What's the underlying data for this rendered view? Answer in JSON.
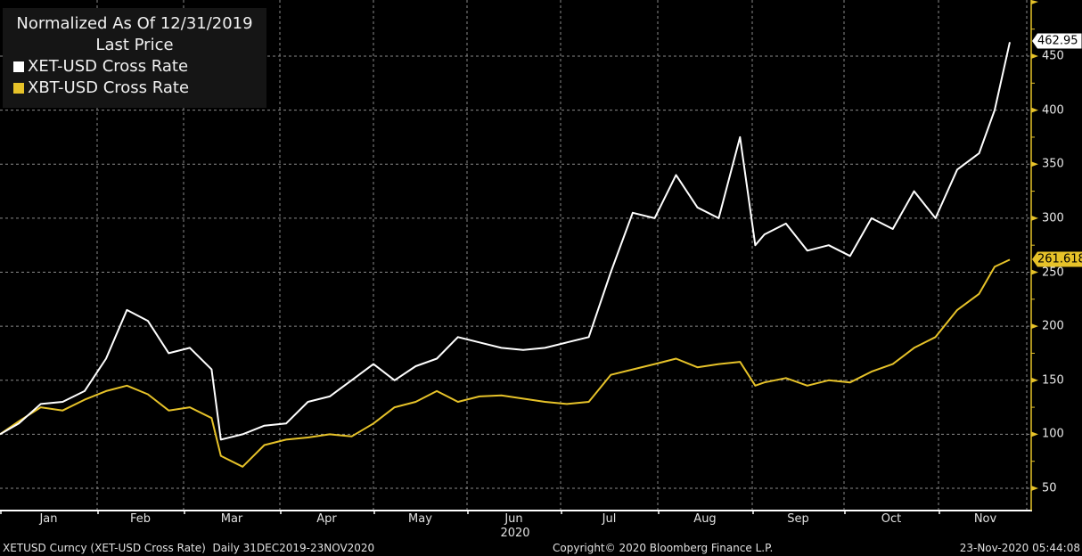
{
  "legend": {
    "title_line1": "Normalized As Of 12/31/2019",
    "title_line2": "Last Price",
    "items": [
      {
        "label": "XET-USD Cross Rate",
        "color": "#ffffff"
      },
      {
        "label": "XBT-USD Cross Rate",
        "color": "#e6c229"
      }
    ]
  },
  "footer": {
    "left": "XETUSD Curncy (XET-USD Cross Rate)  Daily 31DEC2019-23NOV2020",
    "center": "Copyright© 2020 Bloomberg Finance L.P.",
    "right": "23-Nov-2020 05:44:08"
  },
  "price_tags": {
    "xet": {
      "value": "462.95",
      "bg": "#ffffff",
      "fg": "#000000"
    },
    "xbt": {
      "value": "261.618",
      "bg": "#e6c229",
      "fg": "#000000"
    }
  },
  "colors": {
    "background": "#000000",
    "axis": "#e6c229",
    "grid": "#8a8a8a",
    "xet": "#ffffff",
    "xbt": "#e6c229"
  },
  "chart_data": {
    "type": "line",
    "title": "Normalized As Of 12/31/2019 — Last Price",
    "xlabel": "2020",
    "ylabel": "",
    "ylim": [
      30,
      480
    ],
    "y_ticks": [
      50,
      100,
      150,
      200,
      250,
      300,
      350,
      400,
      450
    ],
    "x_tick_labels": [
      "Jan",
      "Feb",
      "Mar",
      "Apr",
      "May",
      "Jun",
      "Jul",
      "Aug",
      "Sep",
      "Oct",
      "Nov"
    ],
    "x_year_label": "2020",
    "grid": true,
    "legend_position": "top-left",
    "x": [
      "2019-12-31",
      "2020-01-07",
      "2020-01-14",
      "2020-01-21",
      "2020-01-28",
      "2020-02-04",
      "2020-02-11",
      "2020-02-18",
      "2020-02-25",
      "2020-03-03",
      "2020-03-10",
      "2020-03-13",
      "2020-03-20",
      "2020-03-27",
      "2020-04-03",
      "2020-04-10",
      "2020-04-17",
      "2020-04-24",
      "2020-05-01",
      "2020-05-08",
      "2020-05-15",
      "2020-05-22",
      "2020-05-29",
      "2020-06-05",
      "2020-06-12",
      "2020-06-19",
      "2020-06-26",
      "2020-07-03",
      "2020-07-10",
      "2020-07-17",
      "2020-07-24",
      "2020-07-31",
      "2020-08-07",
      "2020-08-14",
      "2020-08-21",
      "2020-08-28",
      "2020-09-02",
      "2020-09-05",
      "2020-09-12",
      "2020-09-19",
      "2020-09-26",
      "2020-10-03",
      "2020-10-10",
      "2020-10-17",
      "2020-10-24",
      "2020-10-31",
      "2020-11-07",
      "2020-11-14",
      "2020-11-19",
      "2020-11-23"
    ],
    "series": [
      {
        "name": "XET-USD Cross Rate",
        "color": "#ffffff",
        "values": [
          100,
          110,
          128,
          130,
          140,
          170,
          215,
          205,
          175,
          180,
          160,
          95,
          100,
          108,
          110,
          130,
          135,
          150,
          165,
          150,
          163,
          170,
          190,
          185,
          180,
          178,
          180,
          185,
          190,
          250,
          305,
          300,
          340,
          310,
          300,
          375,
          275,
          285,
          295,
          270,
          275,
          265,
          300,
          290,
          325,
          300,
          345,
          360,
          400,
          462.95
        ]
      },
      {
        "name": "XBT-USD Cross Rate",
        "color": "#e6c229",
        "values": [
          100,
          112,
          125,
          122,
          132,
          140,
          145,
          137,
          122,
          125,
          115,
          80,
          70,
          90,
          95,
          97,
          100,
          98,
          110,
          125,
          130,
          140,
          130,
          135,
          136,
          133,
          130,
          128,
          130,
          155,
          160,
          165,
          170,
          162,
          165,
          167,
          145,
          148,
          152,
          145,
          150,
          148,
          158,
          165,
          180,
          190,
          215,
          230,
          255,
          261.618
        ]
      }
    ]
  }
}
